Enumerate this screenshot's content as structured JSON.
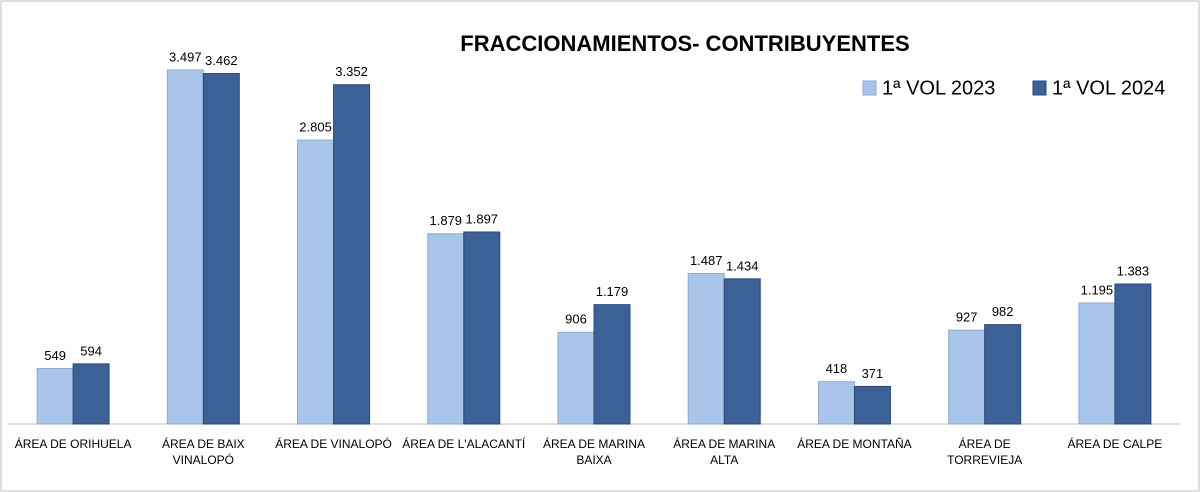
{
  "chart_data": {
    "type": "bar",
    "title": "FRACCIONAMIENTOS- CONTRIBUYENTES",
    "categories": [
      "ÁREA DE ORIHUELA",
      "ÁREA DE BAIX VINALOPÓ",
      "ÁREA DE VINALOPÓ",
      "ÁREA DE L'ALACANTÍ",
      "ÁREA DE MARINA BAIXA",
      "ÁREA DE MARINA ALTA",
      "ÁREA DE MONTAÑA",
      "ÁREA DE TORREVIEJA",
      "ÁREA DE CALPE"
    ],
    "series": [
      {
        "name": "1ª VOL 2023",
        "color": "#a9c5ea",
        "values": [
          549,
          3497,
          2805,
          1879,
          906,
          1487,
          418,
          927,
          1195
        ],
        "value_labels": [
          "549",
          "3.497",
          "2.805",
          "1.879",
          "906",
          "1.487",
          "418",
          "927",
          "1.195"
        ]
      },
      {
        "name": "1ª VOL 2024",
        "color": "#3b6197",
        "values": [
          594,
          3462,
          3352,
          1897,
          1179,
          1434,
          371,
          982,
          1383
        ],
        "value_labels": [
          "594",
          "3.462",
          "3.352",
          "1.897",
          "1.179",
          "1.434",
          "371",
          "982",
          "1.383"
        ]
      }
    ],
    "legend": "top-right"
  }
}
